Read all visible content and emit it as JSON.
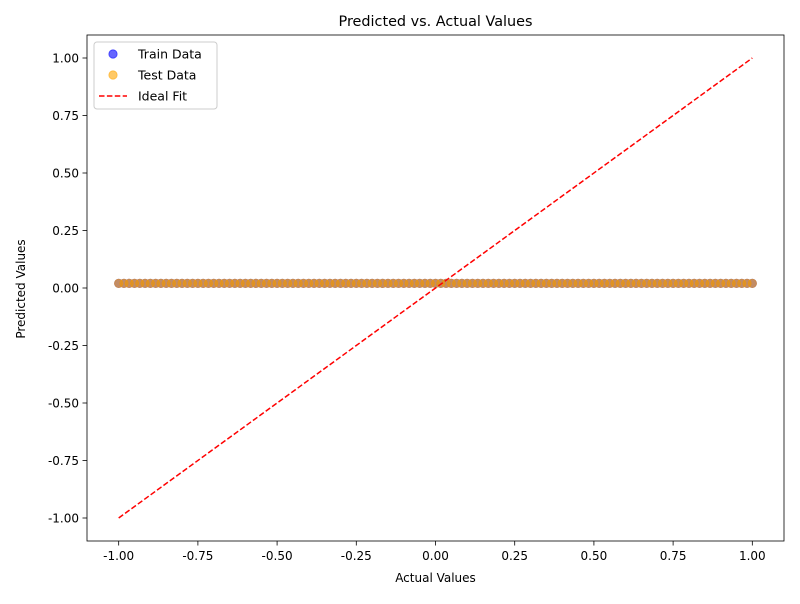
{
  "chart_data": {
    "type": "scatter",
    "title": "Predicted vs. Actual Values",
    "xlabel": "Actual Values",
    "ylabel": "Predicted Values",
    "xlim": [
      -1.1,
      1.1
    ],
    "ylim": [
      -1.1,
      1.1
    ],
    "xticks": [
      -1.0,
      -0.75,
      -0.5,
      -0.25,
      0.0,
      0.25,
      0.5,
      0.75,
      1.0
    ],
    "yticks": [
      -1.0,
      -0.75,
      -0.5,
      -0.25,
      0.0,
      0.25,
      0.5,
      0.75,
      1.0
    ],
    "xtick_labels": [
      "-1.00",
      "-0.75",
      "-0.50",
      "-0.25",
      "0.00",
      "0.25",
      "0.50",
      "0.75",
      "1.00"
    ],
    "ytick_labels": [
      "-1.00",
      "-0.75",
      "-0.50",
      "-0.25",
      "0.00",
      "0.25",
      "0.50",
      "0.75",
      "1.00"
    ],
    "grid": false,
    "legend_position": "top-left",
    "series": [
      {
        "name": "Train Data",
        "kind": "scatter",
        "color": "#0000ff",
        "alpha": 0.6,
        "x_range": [
          -1.0,
          1.0
        ],
        "y_value": 0.02
      },
      {
        "name": "Test Data",
        "kind": "scatter",
        "color": "#ffa500",
        "alpha": 0.6,
        "x_range": [
          -1.0,
          1.0
        ],
        "y_value": 0.02
      },
      {
        "name": "Ideal Fit",
        "kind": "line",
        "style": "dashed",
        "color": "#ff0000",
        "x": [
          -1.0,
          1.0
        ],
        "y": [
          -1.0,
          1.0
        ]
      }
    ]
  }
}
